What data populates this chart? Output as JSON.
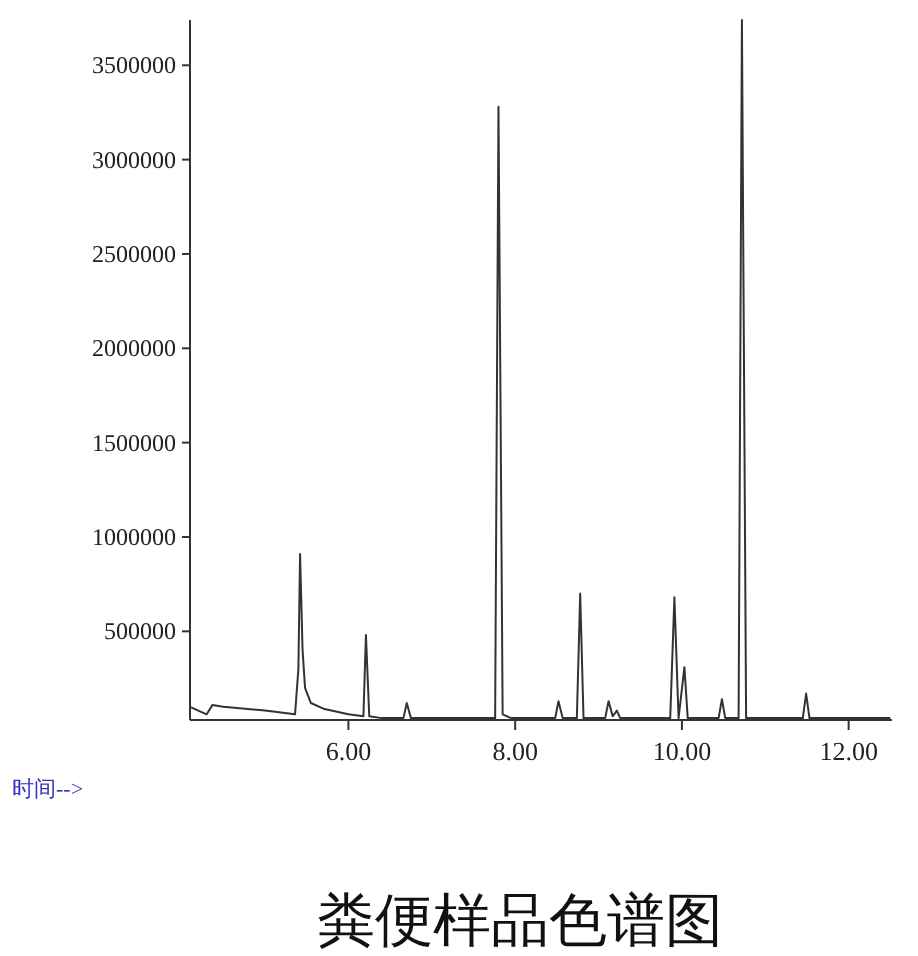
{
  "chart_data": {
    "type": "line",
    "title": "粪便样品色谱图",
    "xlabel": "时间-->",
    "x": [
      4.1,
      4.3,
      4.37,
      4.5,
      5.0,
      5.36,
      5.4,
      5.42,
      5.45,
      5.48,
      5.55,
      5.7,
      6.0,
      6.18,
      6.21,
      6.25,
      6.4,
      6.66,
      6.7,
      6.75,
      7.5,
      7.76,
      7.8,
      7.85,
      7.95,
      8.48,
      8.52,
      8.57,
      8.74,
      8.78,
      8.82,
      9.08,
      9.12,
      9.17,
      9.22,
      9.26,
      9.86,
      9.91,
      9.96,
      10.03,
      10.07,
      10.44,
      10.48,
      10.52,
      10.68,
      10.72,
      10.77,
      11.45,
      11.49,
      11.53,
      12.5
    ],
    "values": [
      100000,
      60000,
      110000,
      100000,
      80000,
      60000,
      300000,
      910000,
      400000,
      200000,
      120000,
      90000,
      60000,
      50000,
      480000,
      50000,
      40000,
      40000,
      120000,
      40000,
      40000,
      40000,
      3280000,
      60000,
      40000,
      40000,
      130000,
      40000,
      40000,
      700000,
      40000,
      40000,
      130000,
      50000,
      80000,
      40000,
      40000,
      680000,
      40000,
      310000,
      40000,
      40000,
      140000,
      40000,
      40000,
      3740000,
      40000,
      40000,
      170000,
      40000,
      40000
    ],
    "color": "#333333",
    "marker": "none",
    "line_style": "solid",
    "grid": false,
    "xlim": [
      4.1,
      12.52
    ],
    "ylim": [
      30000,
      3740000
    ],
    "xticks": [
      {
        "value": 6,
        "label": "6.00"
      },
      {
        "value": 8,
        "label": "8.00"
      },
      {
        "value": 10,
        "label": "10.00"
      },
      {
        "value": 12,
        "label": "12.00"
      }
    ],
    "yticks": [
      500000,
      1000000,
      1500000,
      2000000,
      2500000,
      3000000,
      3500000
    ]
  }
}
